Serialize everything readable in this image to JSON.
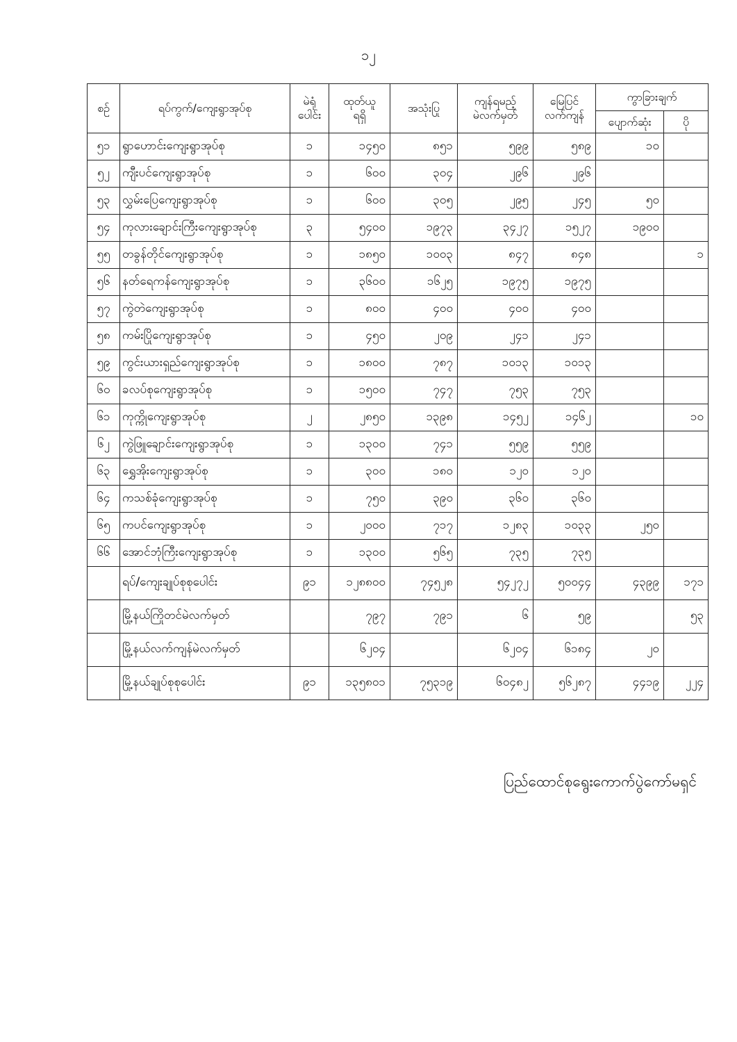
{
  "page_number": "၁၂",
  "table": {
    "headers": {
      "serial": "စဉ်",
      "ward_village": "ရပ်ကွက်/ကျေးရွာအုပ်စု",
      "polling_stations": [
        "မဲရုံ",
        "ပေါင်း"
      ],
      "received": [
        "ထုတ်ယူ",
        "ရရှိ"
      ],
      "used": "အသုံးပြု",
      "remaining_ballots": [
        "ကျန်ရမည့်",
        "မဲလက်မှတ်"
      ],
      "ground_remaining": [
        "မြေပြင်",
        "လက်ကျန်"
      ],
      "difference": "ကွာခြားချက်",
      "lost": "ပျောက်ဆုံး",
      "excess": "ပို"
    },
    "rows": [
      [
        "၅၁",
        "ရွာဟောင်းကျေးရွာအုပ်စု",
        "၁",
        "၁၄၅၀",
        "၈၅၁",
        "၅၉၉",
        "၅၈၉",
        "၁၀",
        ""
      ],
      [
        "၅၂",
        "ကျီးပင်ကျေးရွာအုပ်စု",
        "၁",
        "၆၀၀",
        "၃၀၄",
        "၂၉၆",
        "၂၉၆",
        "",
        ""
      ],
      [
        "၅၃",
        "လွှမ်းပြေကျေးရွာအုပ်စု",
        "၁",
        "၆၀၀",
        "၃၀၅",
        "၂၉၅",
        "၂၄၅",
        "၅၀",
        ""
      ],
      [
        "၅၄",
        "ကုလားချောင်းကြီးကျေးရွာအုပ်စု",
        "၃",
        "၅၄၀၀",
        "၁၉၇၃",
        "၃၄၂၇",
        "၁၅၂၇",
        "၁၉၀၀",
        ""
      ],
      [
        "၅၅",
        "တခွန်တိုင်ကျေးရွာအုပ်စု",
        "၁",
        "၁၈၅၀",
        "၁၀၀၃",
        "၈၄၇",
        "၈၄၈",
        "",
        "၁"
      ],
      [
        "၅၆",
        "နတ်ရေကန်ကျေးရွာအုပ်စု",
        "၁",
        "၃၆၀၀",
        "၁၆၂၅",
        "၁၉၇၅",
        "၁၉၇၅",
        "",
        ""
      ],
      [
        "၅၇",
        "ကွဲတဲကျေးရွာအုပ်စု",
        "၁",
        "၈၀၀",
        "၄၀၀",
        "၄၀၀",
        "၄၀၀",
        "",
        ""
      ],
      [
        "၅၈",
        "ကမ်းပြိုကျေးရွာအုပ်စု",
        "၁",
        "၄၅၀",
        "၂၀၉",
        "၂၄၁",
        "၂၄၁",
        "",
        ""
      ],
      [
        "၅၉",
        "ကွင်းယားရှည်ကျေးရွာအုပ်စု",
        "၁",
        "၁၈၀၀",
        "၇၈၇",
        "၁၀၁၃",
        "၁၀၁၃",
        "",
        ""
      ],
      [
        "၆၀",
        "ခလပ်စုကျေးရွာအုပ်စု",
        "၁",
        "၁၅၀၀",
        "၇၄၇",
        "၇၅၃",
        "၇၅၃",
        "",
        ""
      ],
      [
        "၆၁",
        "ကုက္ကိုကျေးရွာအုပ်စု",
        "၂",
        "၂၈၅၀",
        "၁၃၉၈",
        "၁၄၅၂",
        "၁၄၆၂",
        "",
        "၁၀"
      ],
      [
        "၆၂",
        "ကွဲဖြူချောင်းကျေးရွာအုပ်စု",
        "၁",
        "၁၃၀၀",
        "၇၄၁",
        "၅၅၉",
        "၅၅၉",
        "",
        ""
      ],
      [
        "၆၃",
        "ရွှေအိုးကျေးရွာအုပ်စု",
        "၁",
        "၃၀၀",
        "၁၈၀",
        "၁၂၀",
        "၁၂၀",
        "",
        ""
      ],
      [
        "၆၄",
        "ကသစ်ခုံကျေးရွာအုပ်စု",
        "၁",
        "၇၅၀",
        "၃၉၀",
        "၃၆၀",
        "၃၆၀",
        "",
        ""
      ],
      [
        "၆၅",
        "ကပင်ကျေးရွာအုပ်စု",
        "၁",
        "၂၀၀၀",
        "၇၁၇",
        "၁၂၈၃",
        "၁၀၃၃",
        "၂၅၀",
        ""
      ],
      [
        "၆၆",
        "အောင်ဘုံကြီးကျေးရွာအုပ်စု",
        "၁",
        "၁၃၀၀",
        "၅၆၅",
        "၇၃၅",
        "၇၃၅",
        "",
        ""
      ]
    ],
    "totals": [
      [
        "",
        "ရပ်/ကျေးချုပ်စုစုပေါင်း",
        "၉၁",
        "၁၂၈၈၀၀",
        "၇၄၅၂၈",
        "၅၄၂၇၂",
        "၅၀၀၄၄",
        "၄၃၉၉",
        "၁၇၁"
      ],
      [
        "",
        "မြို့နယ်ကြိုတင်မဲလက်မှတ်",
        "",
        "၇၉၇",
        "၇၉၁",
        "၆",
        "၅၉",
        "",
        "၅၃"
      ],
      [
        "",
        "မြို့နယ်လက်ကျန်မဲလက်မှတ်",
        "",
        "၆၂၀၄",
        "",
        "၆၂၀၄",
        "၆၁၈၄",
        "၂၀",
        ""
      ],
      [
        "",
        "မြို့နယ်ချုပ်စုစုပေါင်း",
        "၉၁",
        "၁၃၅၈၀၁",
        "၇၅၃၁၉",
        "၆၀၄၈၂",
        "၅၆၂၈၇",
        "၄၄၁၉",
        "၂၂၄"
      ]
    ]
  },
  "footer": "ပြည်ထောင်စုရွေးကောက်ပွဲကော်မရှင်"
}
